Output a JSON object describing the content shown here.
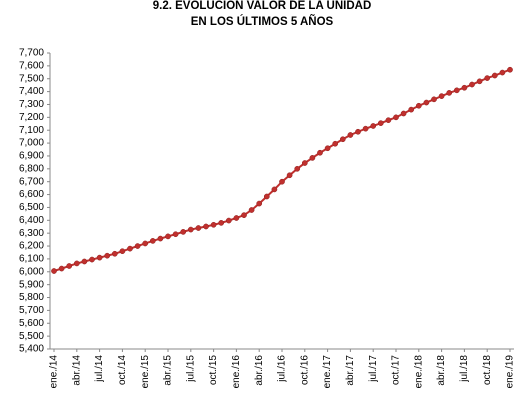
{
  "chart_data": {
    "type": "line",
    "title": [
      "9.2. EVOLUCIÓN VALOR DE LA UNIDAD",
      "EN LOS ÚLTIMOS 5 AÑOS"
    ],
    "categories": [
      "ene./14",
      null,
      null,
      "abr./14",
      null,
      null,
      "jul./14",
      null,
      null,
      "oct./14",
      null,
      null,
      "ene./15",
      null,
      null,
      "abr./15",
      null,
      null,
      "jul./15",
      null,
      null,
      "oct./15",
      null,
      null,
      "ene./16",
      null,
      null,
      "abr./16",
      null,
      null,
      "jul./16",
      null,
      null,
      "oct./16",
      null,
      null,
      "ene./17",
      null,
      null,
      "abr./17",
      null,
      null,
      "jul./17",
      null,
      null,
      "oct./17",
      null,
      null,
      "ene./18",
      null,
      null,
      "abr./18",
      null,
      null,
      "jul./18",
      null,
      null,
      "oct./18",
      null,
      null,
      "ene./19"
    ],
    "series": [
      {
        "color": "#c0302e",
        "values": [
          6006,
          6025,
          6045,
          6065,
          6080,
          6095,
          6110,
          6125,
          6140,
          6160,
          6180,
          6200,
          6220,
          6240,
          6258,
          6275,
          6292,
          6310,
          6328,
          6340,
          6352,
          6365,
          6380,
          6398,
          6418,
          6440,
          6480,
          6530,
          6585,
          6640,
          6700,
          6750,
          6800,
          6845,
          6885,
          6925,
          6960,
          6995,
          7030,
          7063,
          7088,
          7112,
          7133,
          7155,
          7178,
          7200,
          7230,
          7260,
          7290,
          7315,
          7340,
          7365,
          7390,
          7410,
          7430,
          7455,
          7480,
          7505,
          7525,
          7548,
          7570
        ]
      }
    ],
    "ylim": [
      5400,
      7700
    ],
    "yticks": [
      {
        "value": 5400,
        "label": "5,400"
      },
      {
        "value": 5500,
        "label": "5,500"
      },
      {
        "value": 5600,
        "label": "5,600"
      },
      {
        "value": 5700,
        "label": "5,700"
      },
      {
        "value": 5800,
        "label": "5,800"
      },
      {
        "value": 5900,
        "label": "5,900"
      },
      {
        "value": 6000,
        "label": "6,000"
      },
      {
        "value": 6100,
        "label": "6,100"
      },
      {
        "value": 6200,
        "label": "6,200"
      },
      {
        "value": 6300,
        "label": "6,300"
      },
      {
        "value": 6400,
        "label": "6,400"
      },
      {
        "value": 6500,
        "label": "6,500"
      },
      {
        "value": 6600,
        "label": "6,600"
      },
      {
        "value": 6700,
        "label": "6,700"
      },
      {
        "value": 6800,
        "label": "6,800"
      },
      {
        "value": 6900,
        "label": "6,900"
      },
      {
        "value": 7000,
        "label": "7,000"
      },
      {
        "value": 7100,
        "label": "7,100"
      },
      {
        "value": 7200,
        "label": "7,200"
      },
      {
        "value": 7300,
        "label": "7,300"
      },
      {
        "value": 7400,
        "label": "7,400"
      },
      {
        "value": 7500,
        "label": "7,500"
      },
      {
        "value": 7600,
        "label": "7,600"
      },
      {
        "value": 7700,
        "label": "7,700"
      }
    ],
    "grid": false
  }
}
